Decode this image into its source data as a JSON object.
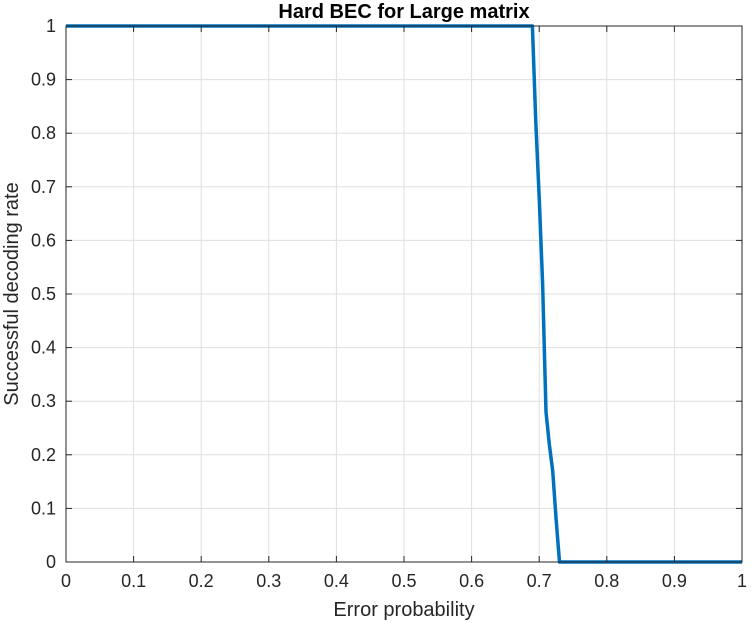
{
  "chart_data": {
    "type": "line",
    "title": "Hard BEC for Large matrix",
    "xlabel": "Error probability",
    "ylabel": "Successful decoding rate",
    "xlim": [
      0,
      1
    ],
    "ylim": [
      0,
      1
    ],
    "xticks": [
      0,
      0.1,
      0.2,
      0.3,
      0.4,
      0.5,
      0.6,
      0.7,
      0.8,
      0.9,
      1
    ],
    "yticks": [
      0,
      0.1,
      0.2,
      0.3,
      0.4,
      0.5,
      0.6,
      0.7,
      0.8,
      0.9,
      1
    ],
    "xtick_labels": [
      "0",
      "0.1",
      "0.2",
      "0.3",
      "0.4",
      "0.5",
      "0.6",
      "0.7",
      "0.8",
      "0.9",
      "1"
    ],
    "ytick_labels": [
      "0",
      "0.1",
      "0.2",
      "0.3",
      "0.4",
      "0.5",
      "0.6",
      "0.7",
      "0.8",
      "0.9",
      "1"
    ],
    "grid": true,
    "series": [
      {
        "color": "#0072bd",
        "x": [
          0,
          0.69,
          0.695,
          0.7,
          0.705,
          0.71,
          0.715,
          0.72,
          0.725,
          0.73,
          1
        ],
        "y": [
          1,
          1,
          0.82,
          0.68,
          0.52,
          0.28,
          0.22,
          0.17,
          0.08,
          0,
          0
        ]
      }
    ]
  }
}
